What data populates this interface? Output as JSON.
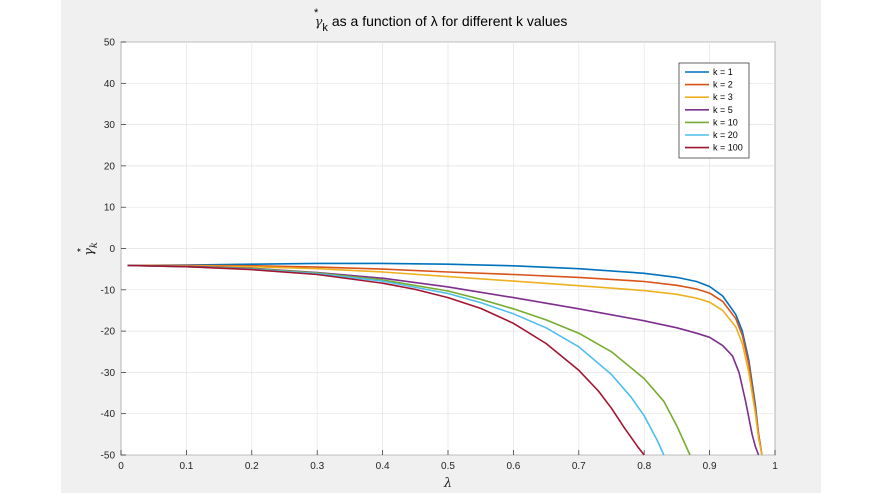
{
  "chart_data": {
    "type": "line",
    "title": "as a function of λ for different k values",
    "title_symbol": "γ",
    "title_superscript": "*",
    "title_subscript": "k",
    "xlabel": "λ",
    "ylabel_symbol": "γ",
    "ylabel_superscript": "*",
    "ylabel_subscript": "k",
    "xlim": [
      0,
      1
    ],
    "ylim": [
      -50,
      50
    ],
    "xticks": [
      "0",
      "0.1",
      "0.2",
      "0.3",
      "0.4",
      "0.5",
      "0.6",
      "0.7",
      "0.8",
      "0.9",
      "1"
    ],
    "yticks": [
      "50",
      "40",
      "30",
      "20",
      "10",
      "0",
      "-10",
      "-20",
      "-30",
      "-40",
      "-50"
    ],
    "grid": true,
    "legend_position": "top-right",
    "series": [
      {
        "name": "k = 1",
        "color": "#0072BD",
        "x": [
          0.01,
          0.1,
          0.2,
          0.3,
          0.4,
          0.5,
          0.6,
          0.7,
          0.8,
          0.85,
          0.88,
          0.9,
          0.92,
          0.94,
          0.95,
          0.96,
          0.97,
          0.975,
          0.98
        ],
        "y": [
          -4.1,
          -4.0,
          -3.8,
          -3.6,
          -3.6,
          -3.8,
          -4.2,
          -4.9,
          -6.0,
          -7.0,
          -8.0,
          -9.2,
          -11.5,
          -16,
          -20,
          -27,
          -38,
          -45,
          -50
        ]
      },
      {
        "name": "k = 2",
        "color": "#D95319",
        "x": [
          0.01,
          0.1,
          0.2,
          0.3,
          0.4,
          0.5,
          0.6,
          0.7,
          0.8,
          0.85,
          0.88,
          0.9,
          0.92,
          0.94,
          0.95,
          0.96,
          0.97,
          0.975,
          0.98
        ],
        "y": [
          -4.1,
          -4.1,
          -4.2,
          -4.5,
          -5.0,
          -5.7,
          -6.3,
          -7.0,
          -8.0,
          -8.9,
          -9.8,
          -10.8,
          -12.8,
          -17,
          -21,
          -28,
          -39,
          -45,
          -50
        ]
      },
      {
        "name": "k = 3",
        "color": "#EDB120",
        "x": [
          0.01,
          0.1,
          0.2,
          0.3,
          0.4,
          0.5,
          0.6,
          0.7,
          0.8,
          0.85,
          0.88,
          0.9,
          0.92,
          0.94,
          0.95,
          0.96,
          0.97,
          0.975,
          0.98
        ],
        "y": [
          -4.1,
          -4.2,
          -4.4,
          -4.9,
          -5.7,
          -6.8,
          -7.9,
          -9.0,
          -10.2,
          -11.1,
          -12.0,
          -13.0,
          -15.0,
          -19,
          -23,
          -30,
          -40,
          -46,
          -50
        ]
      },
      {
        "name": "k = 5",
        "color": "#7E2F8E",
        "x": [
          0.01,
          0.1,
          0.2,
          0.3,
          0.4,
          0.5,
          0.6,
          0.7,
          0.8,
          0.85,
          0.88,
          0.9,
          0.92,
          0.935,
          0.945,
          0.955,
          0.965,
          0.97,
          0.975
        ],
        "y": [
          -4.1,
          -4.3,
          -4.8,
          -5.8,
          -7.2,
          -9.3,
          -11.9,
          -14.6,
          -17.5,
          -19.2,
          -20.5,
          -21.5,
          -23.5,
          -26,
          -30,
          -37,
          -45,
          -48,
          -50
        ]
      },
      {
        "name": "k = 10",
        "color": "#77AC30",
        "x": [
          0.01,
          0.1,
          0.2,
          0.3,
          0.4,
          0.5,
          0.55,
          0.6,
          0.65,
          0.7,
          0.75,
          0.8,
          0.83,
          0.85,
          0.87
        ],
        "y": [
          -4.1,
          -4.4,
          -4.9,
          -5.9,
          -7.6,
          -10.3,
          -12.3,
          -14.6,
          -17.3,
          -20.5,
          -25,
          -31.5,
          -37,
          -43,
          -50
        ]
      },
      {
        "name": "k = 20",
        "color": "#4DBEEE",
        "x": [
          0.01,
          0.1,
          0.2,
          0.3,
          0.4,
          0.5,
          0.55,
          0.6,
          0.65,
          0.7,
          0.75,
          0.78,
          0.8,
          0.82,
          0.83
        ],
        "y": [
          -4.1,
          -4.4,
          -5.0,
          -6.1,
          -7.9,
          -10.9,
          -13.1,
          -15.8,
          -19.2,
          -23.8,
          -30.5,
          -36,
          -40.5,
          -46.5,
          -50
        ]
      },
      {
        "name": "k = 100",
        "color": "#A2142F",
        "x": [
          0.01,
          0.1,
          0.2,
          0.3,
          0.4,
          0.45,
          0.5,
          0.55,
          0.6,
          0.65,
          0.7,
          0.73,
          0.75,
          0.77,
          0.79,
          0.8
        ],
        "y": [
          -4.1,
          -4.4,
          -5.1,
          -6.3,
          -8.4,
          -9.9,
          -11.9,
          -14.5,
          -18.1,
          -23,
          -29.5,
          -34.5,
          -38.7,
          -43.5,
          -48,
          -50
        ]
      }
    ]
  }
}
